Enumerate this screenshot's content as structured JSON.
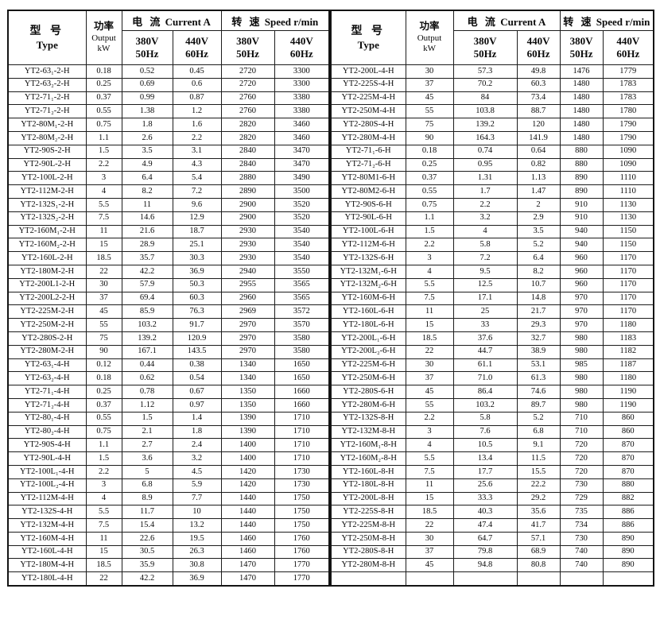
{
  "colors": {
    "background": "#ffffff",
    "border": "#1c1c1c",
    "text": "#0a0a0a"
  },
  "header": {
    "type_cn": "型 号",
    "type_en": "Type",
    "output_cn": "功率",
    "output_en": "Output",
    "output_unit": "kW",
    "current_cn": "电 流",
    "current_en": "Current A",
    "speed_cn": "转 速",
    "speed_en": "Speed r/min",
    "v380": "380V",
    "hz50": "50Hz",
    "v440": "440V",
    "hz60": "60Hz"
  },
  "left_table": {
    "rows": [
      [
        "YT2-63₁-2-H",
        "0.18",
        "0.52",
        "0.45",
        "2720",
        "3300"
      ],
      [
        "YT2-63₂-2-H",
        "0.25",
        "0.69",
        "0.6",
        "2720",
        "3300"
      ],
      [
        "YT2-71₁-2-H",
        "0.37",
        "0.99",
        "0.87",
        "2760",
        "3380"
      ],
      [
        "YT2-71₂-2-H",
        "0.55",
        "1.38",
        "1.2",
        "2760",
        "3380"
      ],
      [
        "YT2-80M₁-2-H",
        "0.75",
        "1.8",
        "1.6",
        "2820",
        "3460"
      ],
      [
        "YT2-80M₂-2-H",
        "1.1",
        "2.6",
        "2.2",
        "2820",
        "3460"
      ],
      [
        "YT2-90S-2-H",
        "1.5",
        "3.5",
        "3.1",
        "2840",
        "3470"
      ],
      [
        "YT2-90L-2-H",
        "2.2",
        "4.9",
        "4.3",
        "2840",
        "3470"
      ],
      [
        "YT2-100L-2-H",
        "3",
        "6.4",
        "5.4",
        "2880",
        "3490"
      ],
      [
        "YT2-112M-2-H",
        "4",
        "8.2",
        "7.2",
        "2890",
        "3500"
      ],
      [
        "YT2-132S₁-2-H",
        "5.5",
        "11",
        "9.6",
        "2900",
        "3520"
      ],
      [
        "YT2-132S₂-2-H",
        "7.5",
        "14.6",
        "12.9",
        "2900",
        "3520"
      ],
      [
        "YT2-160M₁-2-H",
        "11",
        "21.6",
        "18.7",
        "2930",
        "3540"
      ],
      [
        "YT2-160M₂-2-H",
        "15",
        "28.9",
        "25.1",
        "2930",
        "3540"
      ],
      [
        "YT2-160L-2-H",
        "18.5",
        "35.7",
        "30.3",
        "2930",
        "3540"
      ],
      [
        "YT2-180M-2-H",
        "22",
        "42.2",
        "36.9",
        "2940",
        "3550"
      ],
      [
        "YT2-200L1-2-H",
        "30",
        "57.9",
        "50.3",
        "2955",
        "3565"
      ],
      [
        "YT2-200L2-2-H",
        "37",
        "69.4",
        "60.3",
        "2960",
        "3565"
      ],
      [
        "YT2-225M-2-H",
        "45",
        "85.9",
        "76.3",
        "2969",
        "3572"
      ],
      [
        "YT2-250M-2-H",
        "55",
        "103.2",
        "91.7",
        "2970",
        "3570"
      ],
      [
        "YT2-280S-2-H",
        "75",
        "139.2",
        "120.9",
        "2970",
        "3580"
      ],
      [
        "YT2-280M-2-H",
        "90",
        "167.1",
        "143.5",
        "2970",
        "3580"
      ],
      [
        "YT2-63₁-4-H",
        "0.12",
        "0.44",
        "0.38",
        "1340",
        "1650"
      ],
      [
        "YT2-63₂-4-H",
        "0.18",
        "0.62",
        "0.54",
        "1340",
        "1650"
      ],
      [
        "YT2-71₁-4-H",
        "0.25",
        "0.78",
        "0.67",
        "1350",
        "1660"
      ],
      [
        "YT2-71₂-4-H",
        "0.37",
        "1.12",
        "0.97",
        "1350",
        "1660"
      ],
      [
        "YT2-80₁-4-H",
        "0.55",
        "1.5",
        "1.4",
        "1390",
        "1710"
      ],
      [
        "YT2-80₂-4-H",
        "0.75",
        "2.1",
        "1.8",
        "1390",
        "1710"
      ],
      [
        "YT2-90S-4-H",
        "1.1",
        "2.7",
        "2.4",
        "1400",
        "1710"
      ],
      [
        "YT2-90L-4-H",
        "1.5",
        "3.6",
        "3.2",
        "1400",
        "1710"
      ],
      [
        "YT2-100L₁-4-H",
        "2.2",
        "5",
        "4.5",
        "1420",
        "1730"
      ],
      [
        "YT2-100L₂-4-H",
        "3",
        "6.8",
        "5.9",
        "1420",
        "1730"
      ],
      [
        "YT2-112M-4-H",
        "4",
        "8.9",
        "7.7",
        "1440",
        "1750"
      ],
      [
        "YT2-132S-4-H",
        "5.5",
        "11.7",
        "10",
        "1440",
        "1750"
      ],
      [
        "YT2-132M-4-H",
        "7.5",
        "15.4",
        "13.2",
        "1440",
        "1750"
      ],
      [
        "YT2-160M-4-H",
        "11",
        "22.6",
        "19.5",
        "1460",
        "1760"
      ],
      [
        "YT2-160L-4-H",
        "15",
        "30.5",
        "26.3",
        "1460",
        "1760"
      ],
      [
        "YT2-180M-4-H",
        "18.5",
        "35.9",
        "30.8",
        "1470",
        "1770"
      ],
      [
        "YT2-180L-4-H",
        "22",
        "42.2",
        "36.9",
        "1470",
        "1770"
      ]
    ]
  },
  "right_table": {
    "rows": [
      [
        "YT2-200L-4-H",
        "30",
        "57.3",
        "49.8",
        "1476",
        "1779"
      ],
      [
        "YT2-225S-4-H",
        "37",
        "70.2",
        "60.3",
        "1480",
        "1783"
      ],
      [
        "YT2-225M-4-H",
        "45",
        "84",
        "73.4",
        "1480",
        "1783"
      ],
      [
        "YT2-250M-4-H",
        "55",
        "103.8",
        "88.7",
        "1480",
        "1780"
      ],
      [
        "YT2-280S-4-H",
        "75",
        "139.2",
        "120",
        "1480",
        "1790"
      ],
      [
        "YT2-280M-4-H",
        "90",
        "164.3",
        "141.9",
        "1480",
        "1790"
      ],
      [
        "YT2-71₁-6-H",
        "0.18",
        "0.74",
        "0.64",
        "880",
        "1090"
      ],
      [
        "YT2-71₂-6-H",
        "0.25",
        "0.95",
        "0.82",
        "880",
        "1090"
      ],
      [
        "YT2-80M1-6-H",
        "0.37",
        "1.31",
        "1.13",
        "890",
        "1110"
      ],
      [
        "YT2-80M2-6-H",
        "0.55",
        "1.7",
        "1.47",
        "890",
        "1110"
      ],
      [
        "YT2-90S-6-H",
        "0.75",
        "2.2",
        "2",
        "910",
        "1130"
      ],
      [
        "YT2-90L-6-H",
        "1.1",
        "3.2",
        "2.9",
        "910",
        "1130"
      ],
      [
        "YT2-100L-6-H",
        "1.5",
        "4",
        "3.5",
        "940",
        "1150"
      ],
      [
        "YT2-112M-6-H",
        "2.2",
        "5.8",
        "5.2",
        "940",
        "1150"
      ],
      [
        "YT2-132S-6-H",
        "3",
        "7.2",
        "6.4",
        "960",
        "1170"
      ],
      [
        "YT2-132M₁-6-H",
        "4",
        "9.5",
        "8.2",
        "960",
        "1170"
      ],
      [
        "YT2-132M₂-6-H",
        "5.5",
        "12.5",
        "10.7",
        "960",
        "1170"
      ],
      [
        "YT2-160M-6-H",
        "7.5",
        "17.1",
        "14.8",
        "970",
        "1170"
      ],
      [
        "YT2-160L-6-H",
        "11",
        "25",
        "21.7",
        "970",
        "1170"
      ],
      [
        "YT2-180L-6-H",
        "15",
        "33",
        "29.3",
        "970",
        "1180"
      ],
      [
        "YT2-200L₁-6-H",
        "18.5",
        "37.6",
        "32.7",
        "980",
        "1183"
      ],
      [
        "YT2-200L₂-6-H",
        "22",
        "44.7",
        "38.9",
        "980",
        "1182"
      ],
      [
        "YT2-225M-6-H",
        "30",
        "61.1",
        "53.1",
        "985",
        "1187"
      ],
      [
        "YT2-250M-6-H",
        "37",
        "71.0",
        "61.3",
        "980",
        "1180"
      ],
      [
        "YT2-280S-6-H",
        "45",
        "86.4",
        "74.6",
        "980",
        "1190"
      ],
      [
        "YT2-280M-6-H",
        "55",
        "103.2",
        "89.7",
        "980",
        "1190"
      ],
      [
        "YT2-132S-8-H",
        "2.2",
        "5.8",
        "5.2",
        "710",
        "860"
      ],
      [
        "YT2-132M-8-H",
        "3",
        "7.6",
        "6.8",
        "710",
        "860"
      ],
      [
        "YT2-160M₁-8-H",
        "4",
        "10.5",
        "9.1",
        "720",
        "870"
      ],
      [
        "YT2-160M₂-8-H",
        "5.5",
        "13.4",
        "11.5",
        "720",
        "870"
      ],
      [
        "YT2-160L-8-H",
        "7.5",
        "17.7",
        "15.5",
        "720",
        "870"
      ],
      [
        "YT2-180L-8-H",
        "11",
        "25.6",
        "22.2",
        "730",
        "880"
      ],
      [
        "YT2-200L-8-H",
        "15",
        "33.3",
        "29.2",
        "729",
        "882"
      ],
      [
        "YT2-225S-8-H",
        "18.5",
        "40.3",
        "35.6",
        "735",
        "886"
      ],
      [
        "YT2-225M-8-H",
        "22",
        "47.4",
        "41.7",
        "734",
        "886"
      ],
      [
        "YT2-250M-8-H",
        "30",
        "64.7",
        "57.1",
        "730",
        "890"
      ],
      [
        "YT2-280S-8-H",
        "37",
        "79.8",
        "68.9",
        "740",
        "890"
      ],
      [
        "YT2-280M-8-H",
        "45",
        "94.8",
        "80.8",
        "740",
        "890"
      ],
      [
        "",
        "",
        "",
        "",
        "",
        ""
      ]
    ]
  }
}
